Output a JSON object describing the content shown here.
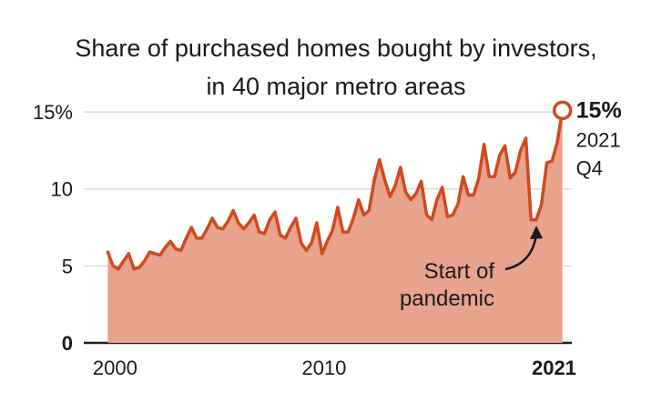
{
  "chart_data": {
    "type": "area",
    "title": [
      "Share of purchased homes bought by investors,",
      "in 40 major metro areas"
    ],
    "xlabel": "",
    "ylabel": "",
    "y_ticks": [
      {
        "value": 0,
        "label": "0",
        "bold": true
      },
      {
        "value": 5,
        "label": "5",
        "bold": false
      },
      {
        "value": 10,
        "label": "10",
        "bold": false
      },
      {
        "value": 15,
        "label": "15%",
        "bold": false
      }
    ],
    "x_ticks": [
      {
        "value": 2000,
        "label": "2000",
        "bold": false
      },
      {
        "value": 2010,
        "label": "2010",
        "bold": false
      },
      {
        "value": 2021,
        "label": "2021",
        "bold": true
      }
    ],
    "xlim": [
      1999.2,
      2022.2
    ],
    "ylim": [
      0,
      15.3
    ],
    "grid": true,
    "start_quarter": "2000 Q1",
    "series": [
      {
        "name": "",
        "color": "#cf4a1e",
        "fill": "#e8a38c",
        "values": [
          5.9,
          5.0,
          4.8,
          5.3,
          5.8,
          4.8,
          4.9,
          5.3,
          5.9,
          5.8,
          5.7,
          6.2,
          6.6,
          6.1,
          6.0,
          6.8,
          7.5,
          6.8,
          6.8,
          7.4,
          8.1,
          7.5,
          7.4,
          7.9,
          8.6,
          7.8,
          7.4,
          7.8,
          8.3,
          7.2,
          7.1,
          8.0,
          8.5,
          7.0,
          6.8,
          7.5,
          8.1,
          6.5,
          6.0,
          6.5,
          7.8,
          5.8,
          6.6,
          7.3,
          8.8,
          7.2,
          7.2,
          8.1,
          9.3,
          8.3,
          8.6,
          10.6,
          11.9,
          10.6,
          9.5,
          10.2,
          11.4,
          9.8,
          9.3,
          9.7,
          10.5,
          8.3,
          8.0,
          9.3,
          10.1,
          8.2,
          8.3,
          9.0,
          10.8,
          9.6,
          9.6,
          10.7,
          12.9,
          10.8,
          10.8,
          12.2,
          12.8,
          10.7,
          11.1,
          12.5,
          13.3,
          8.0,
          8.0,
          9.0,
          11.7,
          11.8,
          13.0,
          15.1
        ]
      }
    ],
    "end_label": {
      "value": "15%",
      "line1": "2021",
      "line2": "Q4"
    },
    "annotation": {
      "line1": "Start of",
      "line2": "pandemic"
    }
  }
}
